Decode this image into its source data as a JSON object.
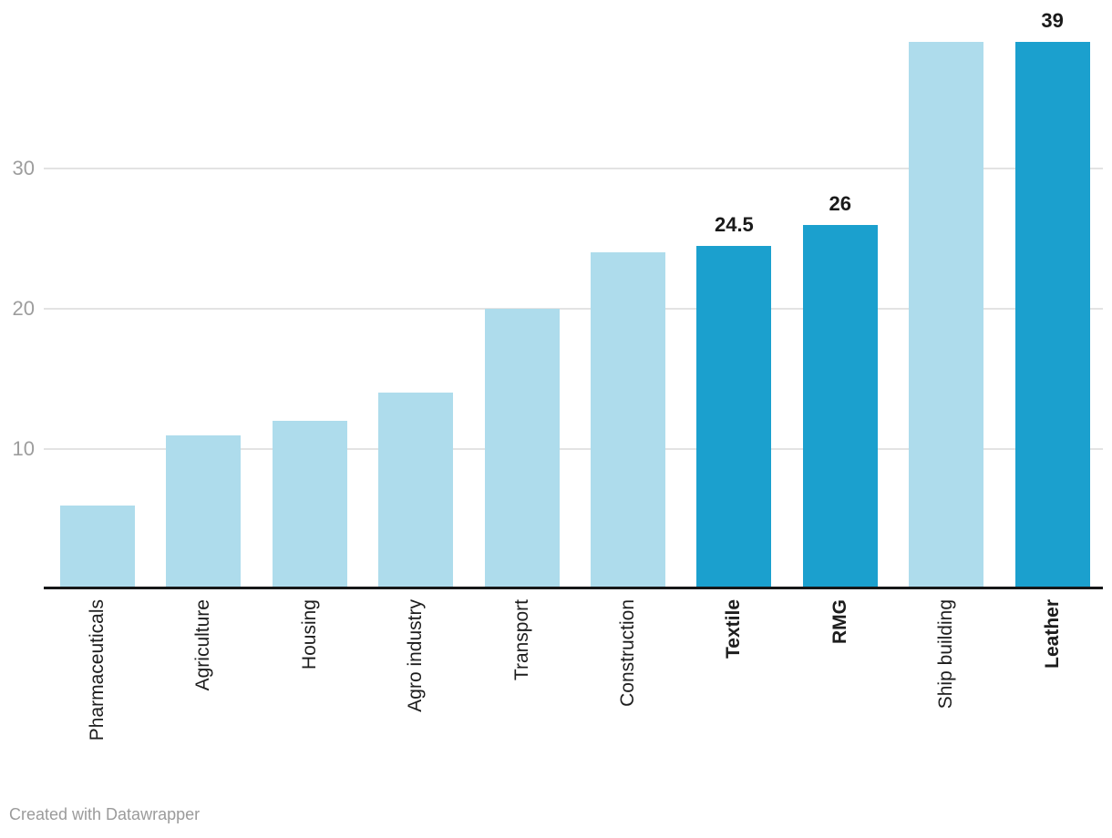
{
  "chart_data": {
    "type": "bar",
    "title": "",
    "xlabel": "",
    "ylabel": "",
    "categories": [
      "Pharmaceuticals",
      "Agriculture",
      "Housing",
      "Agro industry",
      "Transport",
      "Construction",
      "Textile",
      "RMG",
      "Ship building",
      "Leather"
    ],
    "values": [
      6,
      11,
      12,
      14,
      20,
      24,
      24.5,
      26,
      39,
      39
    ],
    "highlighted_categories": [
      "Textile",
      "RMG",
      "Leather"
    ],
    "data_labels": {
      "Textile": "24.5",
      "RMG": "26",
      "Leather": "39"
    },
    "ylim": [
      0,
      40
    ],
    "yticks": [
      10,
      20,
      30
    ],
    "grid": true,
    "legend": "none"
  },
  "colors": {
    "bar_default": "#aedcec",
    "bar_highlight": "#1ba0ce",
    "axis_line": "#161718",
    "gridline": "#e3e3e3",
    "tick_label": "#9d9d9d",
    "category_label": "#1d1d1d",
    "value_label": "#1a1a1a",
    "footer_text": "#9b9b9b",
    "background": "#ffffff"
  },
  "footer": {
    "attribution": "Created with Datawrapper"
  }
}
